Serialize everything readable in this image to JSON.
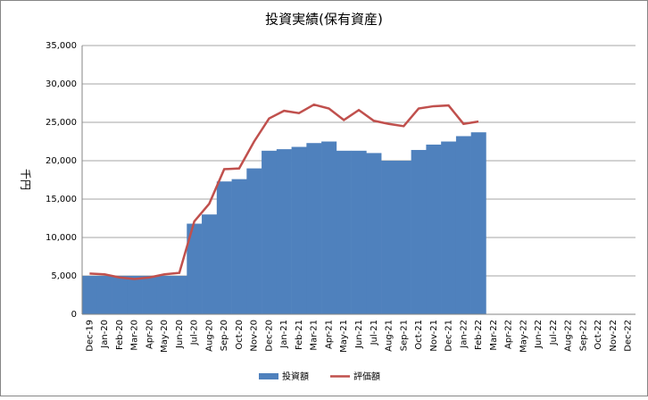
{
  "chart_data": {
    "type": "bar-line",
    "title": "投資実績(保有資産)",
    "y_label": "千円",
    "categories": [
      "Dec-19",
      "Jan-20",
      "Feb-20",
      "Mar-20",
      "Apr-20",
      "May-20",
      "Jun-20",
      "Jul-20",
      "Aug-20",
      "Sep-20",
      "Oct-20",
      "Nov-20",
      "Dec-20",
      "Jan-21",
      "Feb-21",
      "Mar-21",
      "Apr-21",
      "May-21",
      "Jun-21",
      "Jul-21",
      "Aug-21",
      "Sep-21",
      "Oct-21",
      "Nov-21",
      "Dec-21",
      "Jan-22",
      "Feb-22",
      "Mar-22",
      "Apr-22",
      "May-22",
      "Jun-22",
      "Jul-22",
      "Aug-22",
      "Sep-22",
      "Oct-22",
      "Nov-22",
      "Dec-22"
    ],
    "series": [
      {
        "name": "投資額",
        "kind": "bar",
        "color": "#4f81bd",
        "values": [
          5000,
          5000,
          5000,
          5000,
          5000,
          5000,
          5000,
          11800,
          13000,
          17300,
          17600,
          19000,
          21300,
          21500,
          21800,
          22300,
          22500,
          21300,
          21300,
          21000,
          20000,
          20000,
          21400,
          22100,
          22500,
          23200,
          23700,
          null,
          null,
          null,
          null,
          null,
          null,
          null,
          null,
          null,
          null
        ]
      },
      {
        "name": "評価額",
        "kind": "line",
        "color": "#c0504d",
        "values": [
          5300,
          5200,
          4800,
          4600,
          4800,
          5200,
          5400,
          12100,
          14400,
          18900,
          19000,
          22500,
          25500,
          26500,
          26200,
          27300,
          26800,
          25300,
          26600,
          25200,
          24800,
          24500,
          26800,
          27100,
          27200,
          24800,
          25100,
          null,
          null,
          null,
          null,
          null,
          null,
          null,
          null,
          null,
          null
        ]
      }
    ],
    "ylim": [
      0,
      35000
    ],
    "yticks": [
      0,
      {
        "value": 5000,
        "label": "5,000"
      },
      {
        "value": 10000,
        "label": "10,000"
      },
      {
        "value": 15000,
        "label": "15,000"
      },
      {
        "value": 20000,
        "label": "20,000"
      },
      {
        "value": 25000,
        "label": "25,000"
      },
      {
        "value": 30000,
        "label": "30,000"
      },
      {
        "value": 35000,
        "label": "35,000"
      }
    ],
    "grid": true,
    "legend": "bottom"
  }
}
